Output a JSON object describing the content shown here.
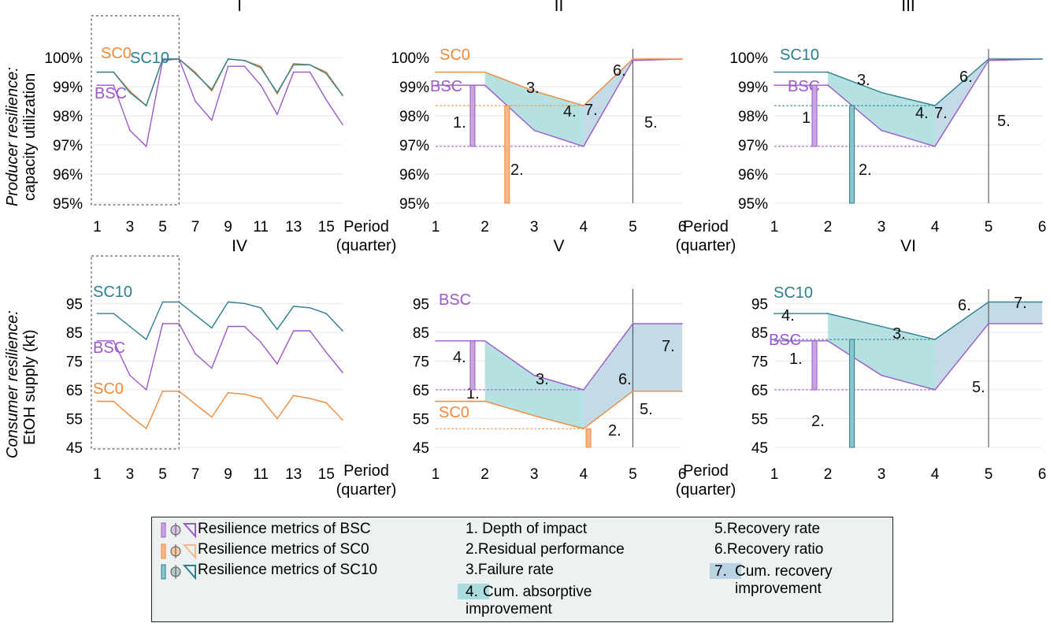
{
  "row_labels": {
    "top": {
      "italic": "Producer resilience:",
      "plain": "capacity utilization"
    },
    "bottom": {
      "italic": "Consumer resilience:",
      "plain": "EtOH supply (kt)"
    }
  },
  "colors": {
    "BSC": "#9b59c8",
    "SC0": "#f08a3a",
    "SC10": "#2a7f8f",
    "absorptive_fill": "#a8dcdd",
    "recovery_fill": "#b8d3e3"
  },
  "legend": {
    "col1": [
      "Resilience metrics of BSC",
      "Resilience metrics of SC0",
      "Resilience metrics of SC10"
    ],
    "col2": [
      "1. Depth of impact",
      "2.Residual performance",
      "3.Failure rate",
      "4.",
      "Cum. absorptive",
      "improvement"
    ],
    "col3": [
      "5.Recovery rate",
      "6.Recovery ratio",
      "7.",
      "Cum. recovery",
      "improvement"
    ]
  },
  "chart_data": [
    {
      "id": "I",
      "type": "line",
      "title": "I",
      "xlabel": "Period (quarter)",
      "xticks": [
        1,
        3,
        5,
        7,
        9,
        11,
        13,
        15
      ],
      "xlim": [
        0.5,
        16
      ],
      "yticks": [
        "95%",
        "96%",
        "97%",
        "98%",
        "99%",
        "100%"
      ],
      "ylim": [
        95,
        100.3
      ],
      "series": [
        {
          "name": "BSC",
          "x": [
            1,
            2,
            3,
            4,
            5,
            6,
            7,
            8,
            9,
            10,
            11,
            12,
            13,
            14,
            15,
            16
          ],
          "y": [
            99.05,
            99.05,
            97.5,
            96.95,
            99.9,
            99.95,
            98.5,
            97.85,
            99.7,
            99.7,
            99.05,
            98.05,
            99.5,
            99.5,
            98.55,
            97.7
          ]
        },
        {
          "name": "SC0",
          "x": [
            1,
            2,
            3,
            4,
            5,
            6,
            7,
            8,
            9,
            10,
            11,
            12,
            13,
            14,
            15,
            16
          ],
          "y": [
            99.5,
            99.5,
            98.85,
            98.35,
            99.95,
            99.95,
            99.5,
            98.85,
            99.95,
            99.9,
            99.7,
            98.75,
            99.8,
            99.75,
            99.5,
            98.7
          ]
        },
        {
          "name": "SC10",
          "x": [
            1,
            2,
            3,
            4,
            5,
            6,
            7,
            8,
            9,
            10,
            11,
            12,
            13,
            14,
            15,
            16
          ],
          "y": [
            99.5,
            99.5,
            98.8,
            98.35,
            99.95,
            99.95,
            99.45,
            98.9,
            99.95,
            99.9,
            99.65,
            98.8,
            99.75,
            99.75,
            99.45,
            98.7
          ]
        }
      ],
      "labels": [
        "SC0",
        "SC10",
        "BSC"
      ]
    },
    {
      "id": "II",
      "type": "line",
      "title": "II",
      "xlabel": "Period (quarter)",
      "xticks": [
        1,
        2,
        3,
        4,
        5,
        6
      ],
      "xlim": [
        1,
        6
      ],
      "yticks": [
        "95%",
        "96%",
        "97%",
        "98%",
        "99%",
        "100%"
      ],
      "ylim": [
        95,
        100.3
      ],
      "series": [
        {
          "name": "BSC",
          "x": [
            1,
            2,
            3,
            4,
            5,
            6
          ],
          "y": [
            99.05,
            99.05,
            97.5,
            96.95,
            99.9,
            99.95
          ]
        },
        {
          "name": "SC0",
          "x": [
            1,
            2,
            3,
            4,
            5,
            6
          ],
          "y": [
            99.5,
            99.5,
            98.85,
            98.35,
            99.95,
            99.95
          ]
        }
      ],
      "labels": [
        "SC0",
        "BSC",
        "1.",
        "2.",
        "3.",
        "4.",
        "5.",
        "6.",
        "7."
      ]
    },
    {
      "id": "III",
      "type": "line",
      "title": "III",
      "xlabel": "",
      "xticks": [
        1,
        2,
        3,
        4,
        5,
        6
      ],
      "xlim": [
        1,
        6
      ],
      "yticks": [
        "95%",
        "96%",
        "97%",
        "98%",
        "99%",
        "100%"
      ],
      "ylim": [
        95,
        100.3
      ],
      "series": [
        {
          "name": "BSC",
          "x": [
            1,
            2,
            3,
            4,
            5,
            6
          ],
          "y": [
            99.05,
            99.05,
            97.5,
            96.95,
            99.9,
            99.95
          ]
        },
        {
          "name": "SC10",
          "x": [
            1,
            2,
            3,
            4,
            5,
            6
          ],
          "y": [
            99.5,
            99.5,
            98.8,
            98.35,
            99.95,
            99.95
          ]
        }
      ],
      "labels": [
        "SC10",
        "BSC",
        "1.",
        "2.",
        "3.",
        "4.",
        "5.",
        "6.",
        "7."
      ]
    },
    {
      "id": "IV",
      "type": "line",
      "title": "IV",
      "xlabel": "Period (quarter)",
      "xticks": [
        1,
        3,
        5,
        7,
        9,
        11,
        13,
        15
      ],
      "xlim": [
        0.5,
        16
      ],
      "yticks": [
        "45",
        "55",
        "65",
        "75",
        "85",
        "95"
      ],
      "ylim": [
        45,
        100
      ],
      "series": [
        {
          "name": "SC10",
          "x": [
            1,
            2,
            3,
            4,
            5,
            6,
            7,
            8,
            9,
            10,
            11,
            12,
            13,
            14,
            15,
            16
          ],
          "y": [
            91.5,
            91.5,
            87,
            82.5,
            95.5,
            95.5,
            91,
            86.5,
            95.5,
            95,
            93.5,
            86,
            94,
            93.5,
            91.5,
            85.5
          ]
        },
        {
          "name": "BSC",
          "x": [
            1,
            2,
            3,
            4,
            5,
            6,
            7,
            8,
            9,
            10,
            11,
            12,
            13,
            14,
            15,
            16
          ],
          "y": [
            82,
            82,
            70,
            65,
            88,
            88,
            77.5,
            72.5,
            87,
            87,
            81.5,
            74,
            85.5,
            85.5,
            78,
            71
          ]
        },
        {
          "name": "SC0",
          "x": [
            1,
            2,
            3,
            4,
            5,
            6,
            7,
            8,
            9,
            10,
            11,
            12,
            13,
            14,
            15,
            16
          ],
          "y": [
            61,
            61,
            56,
            51.5,
            64.5,
            64.5,
            60,
            55.5,
            64,
            63.5,
            62,
            55,
            63,
            62,
            60.5,
            54.5
          ]
        }
      ],
      "labels": [
        "SC10",
        "BSC",
        "SC0"
      ]
    },
    {
      "id": "V",
      "type": "line",
      "title": "V",
      "xlabel": "Period (quarter)",
      "xticks": [
        1,
        2,
        3,
        4,
        5,
        6
      ],
      "xlim": [
        1,
        6
      ],
      "yticks": [
        "45",
        "55",
        "65",
        "75",
        "85",
        "95"
      ],
      "ylim": [
        45,
        100
      ],
      "series": [
        {
          "name": "BSC",
          "x": [
            1,
            2,
            3,
            4,
            5,
            6
          ],
          "y": [
            82,
            82,
            70,
            65,
            88,
            88
          ]
        },
        {
          "name": "SC0",
          "x": [
            1,
            2,
            3,
            4,
            5,
            6
          ],
          "y": [
            61,
            61,
            56,
            51.5,
            64.5,
            64.5
          ]
        }
      ],
      "labels": [
        "BSC",
        "SC0",
        "1.",
        "2.",
        "3.",
        "4.",
        "5.",
        "6.",
        "7."
      ]
    },
    {
      "id": "VI",
      "type": "line",
      "title": "VI",
      "xlabel": "",
      "xticks": [
        1,
        2,
        3,
        4,
        5,
        6
      ],
      "xlim": [
        1,
        6
      ],
      "yticks": [
        "45",
        "55",
        "65",
        "75",
        "85",
        "95"
      ],
      "ylim": [
        45,
        100
      ],
      "series": [
        {
          "name": "SC10",
          "x": [
            1,
            2,
            3,
            4,
            5,
            6
          ],
          "y": [
            91.5,
            91.5,
            87,
            82.5,
            95.5,
            95.5
          ]
        },
        {
          "name": "BSC",
          "x": [
            1,
            2,
            3,
            4,
            5,
            6
          ],
          "y": [
            82,
            82,
            70,
            65,
            88,
            88
          ]
        }
      ],
      "labels": [
        "SC10",
        "BSC",
        "1.",
        "2.",
        "3.",
        "4.",
        "5.",
        "6.",
        "7."
      ]
    }
  ]
}
